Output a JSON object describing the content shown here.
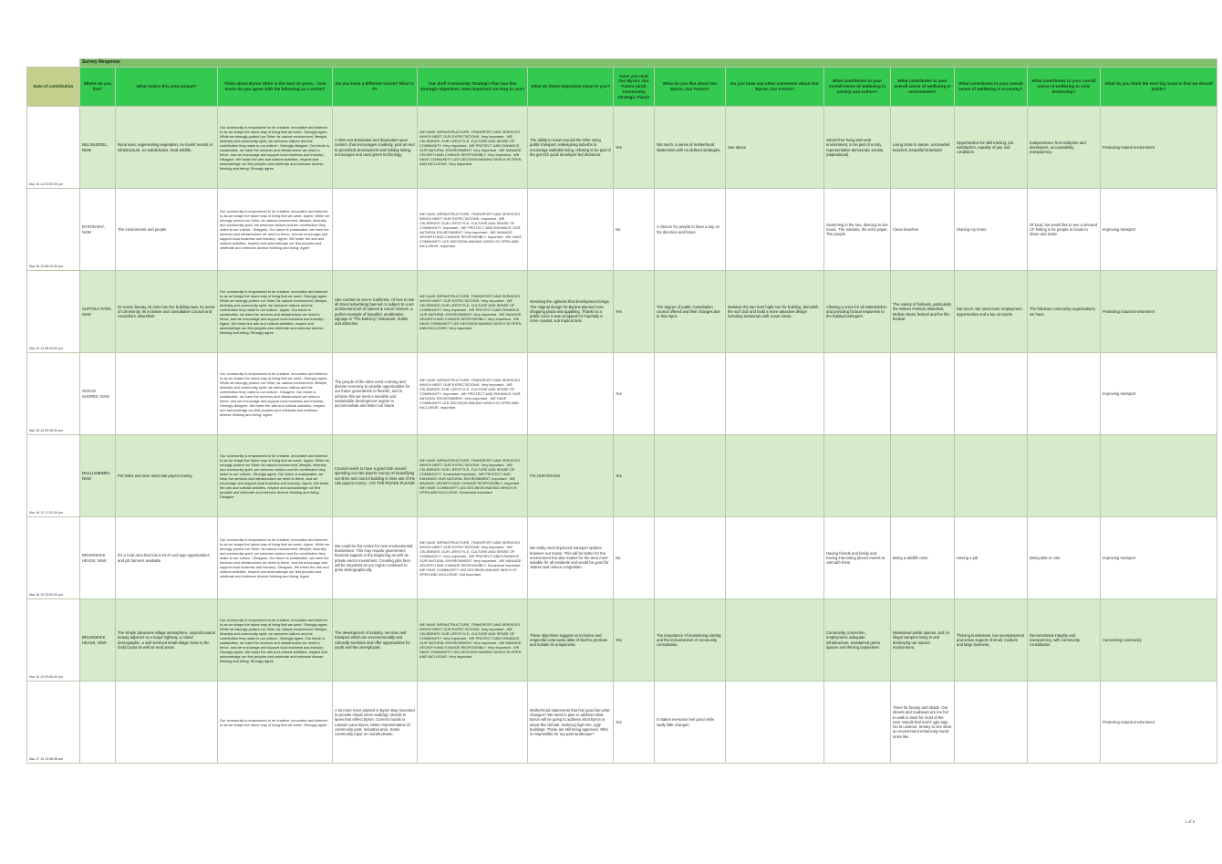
{
  "group_header": "Survey Response",
  "headers": {
    "date": "Date of contribution",
    "where": "Where do you live?",
    "unique": "What makes this area unique?",
    "vision": "Think about Byron Shire in the next 10 years... how much do you agree with the following as a vision?",
    "diff_vision": "Do you have a different vision? What is it?",
    "objectives": "Our draft Community Strategic Plan has five strategic objectives. How important are they to you?",
    "obj_mean": "What do these objectives mean to you?",
    "read": "Have you read Our Byron, Our Future (draft Community Strategic Plan)?",
    "like": "What do you like about Our Byron, Our Future?",
    "comments": "Do you have any other comments about Our Byron, Our Future?",
    "society": "What contributes to your overall sense of wellbeing in society and culture?",
    "environment": "What contributes to your overall sense of wellbeing in environment?",
    "economy": "What contributes to your overall sense of wellbeing in economy?",
    "civic": "What contributes to your overall sense of wellbeing in civic leadership?",
    "big_issue": "What do you think the next big issue is that we should tackle?"
  },
  "rows": [
    {
      "date": "Mar 15 13 03:00:00 pm",
      "where": "BILLINUDGEL, NSW",
      "unique": "Rural area, regenerating vegetation, no tourist resorts or infrastructure, no subdivisions, local wildlife,",
      "vision": "Our community is empowered to be creative, innovative and listened to as we shape the future way of living that we want.: Strongly agree, While we strongly protect our Shire; its natural environment, lifestyle, diversity and community spirit, we welcome visitors and the contribution they make to our culture.: Strongly disagree, Our future is sustainable, we have the services and infrastructure we need to thrive, and we encourage and support local business and industry.: Disagree, We foster the arts and cultural activities, respect and acknowledge our first peoples and celebrate and embrace diverse thinking and being: Strongly agree",
      "diff_vision": "A shire not dominated and dependant upon tourism, that encourages creativity, puts an end to greenfield development and holiday letting, encourages and uses green technology.",
      "objectives": "WE HAVE INFRASTRUCTURE, TRANSPORT AND SERVICES WHICH MEET OUR EXPECTATIONS: Very important , WE CELEBRATE OUR LIFESTYLE, CULTURE AND SENSE OF COMMUNITY: Very important , WE PROTECT AND ENHANCE OUR NATURAL ENVIRONMENT: Very important , WE MANAGE GROWTH AND CHANGE RESPONSIBLY: Very important , WE HAVE COMMUNITY LED DECISION MAKING WHICH IS OPEN AND INCLUSIVE: Very important",
      "obj_mean": "The ability to travel around the shire using public transport, redesigning suburbs to encourage walkable living, refusing to be part of the get-rich quick developer-led decisions.",
      "read": "Yes",
      "like": "Not much, a series of motherhood statements with no defined strategies,",
      "comments": "See above",
      "society": "Stress-free living and work environment, to be part of a truly representative democratic society (aspirational).",
      "environment": "Living close to nature, uncrowded beaches, beautiful hinterland",
      "economy": "Opportunities for skill training, job satisfaction, equality of pay and conditions.",
      "civic": "Independence from lobbyists and developers, accountability, transparency.",
      "big_issue": "Protecting natural environment"
    },
    {
      "date": "Mar 16 13 06:29:40 pm",
      "where": "BYRON BAY, NSW",
      "unique": "The environment and people",
      "vision": "Our community is empowered to be creative, innovative and listened to as we shape the future way of living that we want.: Agree, While we strongly protect our Shire; its natural environment, lifestyle, diversity and community spirit, we welcome visitors and the contribution they make to our culture.: Disagree, Our future is sustainable, we have the services and infrastructure we need to thrive, and we encourage and support local business and industry.: Agree, We foster the arts and cultural activities, respect and acknowledge our first peoples and celebrate and embrace diverse thinking and being: Agree",
      "diff_vision": "",
      "objectives": "WE HAVE INFRASTRUCTURE, TRANSPORT AND SERVICES WHICH MEET OUR EXPECTATIONS: Important , WE CELEBRATE OUR LIFESTYLE, CULTURE AND SENSE OF COMMUNITY: Important , WE PROTECT AND ENHANCE OUR NATURAL ENVIRONMENT: Very important , WE MANAGE GROWTH AND CHANGE RESPONSIBLY: Important , WE HAVE COMMUNITY LED DECISION MAKING WHICH IS OPEN AND INCLUSIVE: Important",
      "obj_mean": "",
      "read": "No",
      "like": "A chance for people to have a say on the direction and future",
      "comments": "",
      "society": "Swimming in the sea, dancing to live music. The markets, the echo paper. The people",
      "environment": "Clean beaches",
      "economy": "Owning my home",
      "civic": "Of local, but would like to see a devoted CF fishing & for people to locals to share and make",
      "big_issue": "Improving transport"
    },
    {
      "date": "Mar 16 13 08:30:00 pm",
      "where": "SUFFOLK PARK, NSW",
      "unique": "Its scenic beauty, its strict low rise building laws, its sense of community, its inclusive and consultative Council and councillors, Bluesfest!",
      "vision": "Our community is empowered to be creative, innovative and listened to as we shape the future way of living that we want.: Strongly agree, While we strongly protect our Shire; its natural environment, lifestyle, diversity and community spirit, we welcome visitors and the contribution they make to our culture.: Agree, Our future is sustainable, we have the services and infrastructure we need to thrive, and we encourage and support local business and industry.: Agree, We foster the arts and cultural activities, respect and acknowledge our first peoples and celebrate and embrace diverse thinking and being: Strongly agree",
      "diff_vision": "Like Carmel on sea in California, I'd love to see all street advertising banned or subject to a set architectural set of options & colour choices. a perfect example of beautiful, unobtrusive signage is \"The Balcony\" restaurant. Subtle and attractive.",
      "objectives": "WE HAVE INFRASTRUCTURE, TRANSPORT AND SERVICES WHICH MEET OUR EXPECTATIONS: Very important , WE CELEBRATE OUR LIFESTYLE, CULTURE AND SENSE OF COMMUNITY: Very important , WE PROTECT AND ENHANCE OUR NATURAL ENVIRONMENT: Very important , WE MANAGE GROWTH AND CHANGE RESPONSIBLY: Very important , WE HAVE COMMUNITY LED DECISION MAKING WHICH IS OPEN AND INCLUSIVE: Very important",
      "obj_mean": "Resisting the ugliness that development brings. The original design for Byrons planned new shopping plaza was appalling. Thanks to a public voice it was scrapped for hopefully a more coastal, sub tropical look.",
      "read": "Yes",
      "like": "The degree of public consultation council offered and their changes due to that input.",
      "comments": "Maintain the two level hight rule for building, demolish the surf club and build a more attractive design including restaurant with ocean views.",
      "society": "Allowing a voice for all stakeholders and providing factual responses to the habitual whingers.",
      "environment": "The variety of festivals, particularly the Writers Festival, Bluesfest, Mullum Music festival and the film festival.",
      "economy": "Not much. We need more employment opportunities and a tax on tourist",
      "civic": "The fabulous community organisations we have.",
      "big_issue": "Protecting natural environment"
    },
    {
      "date": "Mar 16 13 09:45:30 pm",
      "where": "OCEAN SHORES, NSW",
      "unique": "",
      "vision": "Our community is empowered to be creative, innovative and listened to as we shape the future way of living that we want.: Strongly agree, While we strongly protect our Shire; its natural environment, lifestyle, diversity and community spirit, we welcome visitors and the contribution they make to our culture.: Disagree, Our future is sustainable, we have the services and infrastructure we need to thrive, and we encourage and support local business and industry.: Strongly disagree, We foster the arts and cultural activities, respect and acknowledge our first peoples and celebrate and embrace diverse thinking and being: Agree",
      "diff_vision": "The people of the shire need a strong and diverse economy to provide opportunities for our future generations to flourish, and to achieve this we need a sensible and sustainable development regime to accommodate and foster our future",
      "objectives": "WE HAVE INFRASTRUCTURE, TRANSPORT AND SERVICES WHICH MEET OUR EXPECTATIONS: Very important , WE CELEBRATE OUR LIFESTYLE, CULTURE AND SENSE OF COMMUNITY: Important , WE PROTECT AND ENHANCE OUR NATURAL ENVIRONMENT: Very important , WE HAVE COMMUNITY LED DECISION MAKING WHICH IS OPEN AND INCLUSIVE: Important",
      "obj_mean": "",
      "read": "Yes",
      "like": "",
      "comments": "",
      "society": "",
      "environment": "",
      "economy": "",
      "civic": "",
      "big_issue": "Improving transport"
    },
    {
      "date": "Mar 16 13 17:02:36 pm",
      "where": "MULLUMBIMBY, NSW",
      "unique": "Pot holes and mise used rate payers money",
      "vision": "Our community is empowered to be creative, innovative and listened to as we shape the future way of living that we want.: Agree, While we strongly protect our Shire; its natural environment, lifestyle, diversity and community spirit, we welcome visitors and the contribution they make to our culture.: Strongly agree, Our future is sustainable, we have the services and infrastructure we need to thrive, and we encourage and support local business and industry.: Agree, We foster the arts and cultural activities, respect and acknowledge our first peoples and celebrate and embrace diverse thinking and being: Disagree",
      "diff_vision": "Council needs to have a good look around spending our rate payers money on beautifying our shire and council building is mise use of the rate payers money - FIX THE ROADS PLEASE",
      "objectives": "WE HAVE INFRASTRUCTURE, TRANSPORT AND SERVICES WHICH MEET OUR EXPECTATIONS: Very important , WE CELEBRATE OUR LIFESTYLE, CULTURE AND SENSE OF COMMUNITY: Somewhat important , WE PROTECT AND ENHANCE OUR NATURAL ENVIRONMENT: Important , WE MANAGE GROWTH AND CHANGE RESPONSIBLY: Important , WE HAVE COMMUNITY LED DECISION MAKING WHICH IS OPEN AND INCLUSIVE: Somewhat important",
      "obj_mean": "FIX OUR ROADS",
      "read": "Yes",
      "like": "",
      "comments": "",
      "society": "",
      "environment": "",
      "economy": "",
      "civic": "",
      "big_issue": ""
    },
    {
      "date": "Mar 16 13 23:52:20 pm",
      "where": "BRUNSWICK HEADS, NSW",
      "unique": "It's a rural area that has a lot of cool type opportunities and job fairness available",
      "vision": "Our community is empowered to be creative, innovative and listened to as we shape the future way of living that we want.: Agree, While we strongly protect our Shire; its natural environment, lifestyle, diversity and community spirit, we welcome visitors and the contribution they make to our culture.: Disagree, Our future is sustainable, we have the services and infrastructure we need to thrive, and we encourage and support local business and industry.: Disagree, We foster the arts and cultural activities, respect and acknowledge our first peoples and celebrate and embrace diverse thinking and being: Agree",
      "diff_vision": "We could be the centre for new environmental businesses. This may require government financial support in the beginning as well as private sector investment. Creating jobs here will be important as our region continues to grow demographically",
      "objectives": "WE HAVE INFRASTRUCTURE, TRANSPORT AND SERVICES WHICH MEET OUR EXPECTATIONS: Very important , WE CELEBRATE OUR LIFESTYLE, CULTURE AND SENSE OF COMMUNITY: Very important , WE PROTECT AND ENHANCE OUR NATURAL ENVIRONMENT: Very important , WE MANAGE GROWTH AND CHANGE RESPONSIBLY: Somewhat important , WE HAVE COMMUNITY LED DECISION MAKING WHICH IS OPEN AND INCLUSIVE: Not important",
      "obj_mean": "We really need improved transport options between our towns. This will be better for the environment but also makes for the area more suitable for all residents and would be good for visitors and reduce congestion.",
      "read": "No",
      "like": "",
      "comments": "",
      "society": "Having friends and family and having interesting places events to visit with them.",
      "environment": "Being a wildlife carer",
      "economy": "Having a job",
      "civic": "Being able to vote",
      "big_issue": "Improving transport"
    },
    {
      "date": "Mar 16 13 09:06:40 pm",
      "where": "BRUNSWICK HEADS, NSW",
      "unique": "The simple pleasures village atmosphere, unspoilt natural beauty adjacent to a major highway, a mixed demographic, a well serviced small village close to the Gold Coast as well as rural areas.",
      "vision": "Our community is empowered to be creative, innovative and listened to as we shape the future way of living that we want.: Strongly agree, While we strongly protect our Shire; its natural environment, lifestyle, diversity and community spirit, we welcome visitors and the contribution they make to our culture.: Strongly agree, Our future is sustainable, we have the services and infrastructure we need to thrive, and we encourage and support local business and industry.: Strongly agree, We foster the arts and cultural activities, respect and acknowledge our first peoples and celebrate and embrace diverse thinking and being: Strongly agree",
      "diff_vision": "The development of industry, services and transport which are environmentally and culturally sensitive and offer opportunities for youth and the unemployed.",
      "objectives": "WE HAVE INFRASTRUCTURE, TRANSPORT AND SERVICES WHICH MEET OUR EXPECTATIONS: Very important , WE CELEBRATE OUR LIFESTYLE, CULTURE AND SENSE OF COMMUNITY: Very important , WE PROTECT AND ENHANCE OUR NATURAL ENVIRONMENT: Very important , WE MANAGE GROWTH AND CHANGE RESPONSIBLY: Very important , WE HAVE COMMUNITY LED DECISION MAKING WHICH IS OPEN AND INCLUSIVE: Very important",
      "obj_mean": "These objectives suggest an inclusive and respectful community alike of itself to promote and sustain its uniqueness.",
      "read": "Yes",
      "like": "The importance of maintaining identity and the inclusiveness of community consultation.",
      "comments": "",
      "society": "Community connection, employment, adequate infrastructure, maintained green spaces and thriving businesses",
      "environment": "Maintained public spaces, and no illegal campers living in and destroying our natural environment.",
      "economy": "Thriving businesses, low unemployment and active support of small, medium and large business.",
      "civic": "Demonstrated integrity and transparency, with community consultation.",
      "big_issue": "Connecting community"
    },
    {
      "date": "Mar 17 13 12:56:38 am",
      "where": "",
      "unique": "",
      "vision": "Our community is empowered to be creative, innovative and listened to as we shape the future way of living that we want.: Strongly agree",
      "diff_vision": "A lot more trees planted in Byron Bay (Invented to provide shade when walking). Murals in lanes that reflect Byron. Current murals in Lawson Lane Byron, better representation of community post. Industrial area. Some community input on murals please.",
      "objectives": "",
      "obj_mean": "Motherhood statements that feel good but what changes? We need to plan to address what Byron will be going to address what Byron is about like climate, reducing high rise, ugly buildings. These are still being approved. Who is responsible for our past landscape?",
      "read": "Yes",
      "like": "It makes everyone feel good while sadly little changes.",
      "comments": "",
      "society": "",
      "environment": "Trees for beauty and shade. Our streets and roadways are too hot to walk to town for most of the year. Murals that aren't ugly tags. Go to Lismore. Smoky to see what an environment enhancing mural looks like.",
      "economy": "",
      "civic": "",
      "big_issue": "Protecting natural environment"
    }
  ],
  "page_number": "1 of 5"
}
